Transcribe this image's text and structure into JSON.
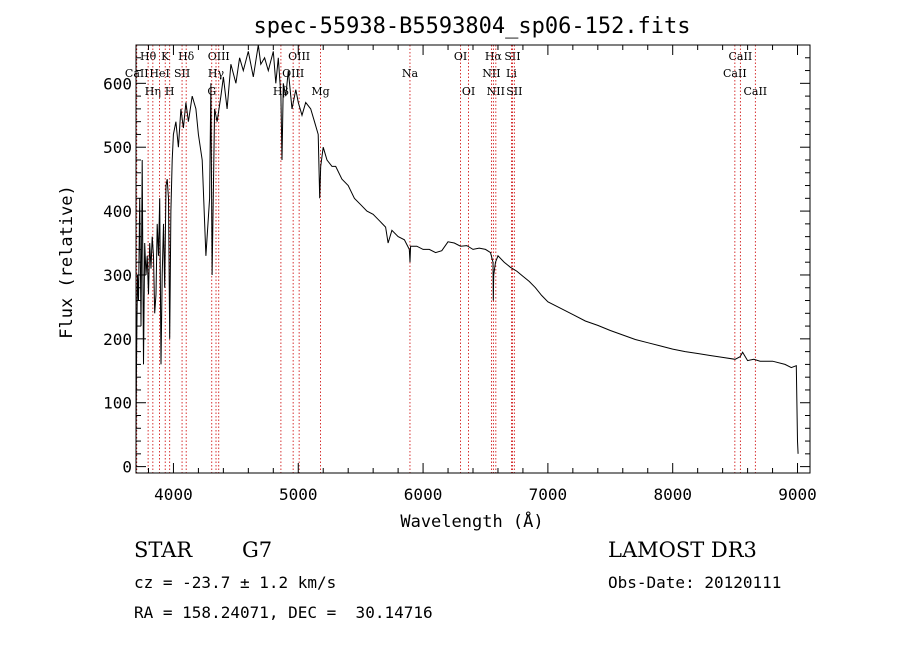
{
  "chart_data": {
    "type": "line",
    "title": "spec-55938-B5593804_sp06-152.fits",
    "xlabel": "Wavelength (Å)",
    "ylabel": "Flux (relative)",
    "xlim": [
      3700,
      9100
    ],
    "ylim": [
      -10,
      660
    ],
    "xticks": [
      4000,
      5000,
      6000,
      7000,
      8000,
      9000
    ],
    "yticks": [
      0,
      100,
      200,
      300,
      400,
      500,
      600
    ],
    "grid": false,
    "legend": "none",
    "series": [
      {
        "name": "flux",
        "x": [
          3700,
          3705,
          3712,
          3720,
          3730,
          3740,
          3750,
          3760,
          3770,
          3780,
          3790,
          3800,
          3810,
          3820,
          3830,
          3840,
          3850,
          3860,
          3870,
          3880,
          3890,
          3900,
          3910,
          3920,
          3930,
          3940,
          3950,
          3960,
          3970,
          3980,
          3990,
          4000,
          4020,
          4040,
          4060,
          4080,
          4100,
          4120,
          4150,
          4180,
          4200,
          4230,
          4260,
          4290,
          4300,
          4310,
          4330,
          4350,
          4380,
          4400,
          4430,
          4460,
          4500,
          4530,
          4560,
          4600,
          4640,
          4680,
          4700,
          4730,
          4760,
          4800,
          4820,
          4840,
          4861,
          4870,
          4880,
          4900,
          4920,
          4950,
          4980,
          5000,
          5030,
          5060,
          5100,
          5130,
          5160,
          5172,
          5180,
          5200,
          5230,
          5270,
          5300,
          5350,
          5400,
          5450,
          5500,
          5550,
          5600,
          5650,
          5700,
          5720,
          5750,
          5800,
          5850,
          5890,
          5895,
          5900,
          5950,
          6000,
          6050,
          6100,
          6150,
          6200,
          6250,
          6300,
          6350,
          6400,
          6450,
          6500,
          6540,
          6560,
          6563,
          6566,
          6580,
          6600,
          6650,
          6700,
          6750,
          6800,
          6850,
          6900,
          6950,
          7000,
          7100,
          7200,
          7300,
          7400,
          7500,
          7600,
          7700,
          7800,
          7900,
          8000,
          8100,
          8200,
          8300,
          8400,
          8500,
          8540,
          8560,
          8600,
          8650,
          8700,
          8800,
          8900,
          8950,
          8990,
          9000,
          9005
        ],
        "values": [
          40,
          180,
          300,
          260,
          420,
          220,
          480,
          160,
          350,
          300,
          330,
          270,
          350,
          310,
          360,
          330,
          240,
          270,
          380,
          330,
          420,
          160,
          300,
          380,
          280,
          440,
          450,
          420,
          200,
          400,
          480,
          520,
          540,
          500,
          560,
          530,
          570,
          540,
          580,
          560,
          520,
          480,
          330,
          420,
          600,
          300,
          560,
          540,
          580,
          610,
          560,
          630,
          600,
          640,
          620,
          650,
          610,
          660,
          630,
          640,
          620,
          650,
          600,
          640,
          580,
          480,
          600,
          580,
          620,
          560,
          590,
          570,
          550,
          570,
          560,
          540,
          520,
          420,
          470,
          500,
          480,
          470,
          470,
          450,
          440,
          420,
          410,
          400,
          395,
          385,
          375,
          350,
          370,
          360,
          355,
          340,
          320,
          345,
          345,
          340,
          340,
          335,
          338,
          352,
          350,
          345,
          346,
          340,
          342,
          340,
          335,
          320,
          260,
          300,
          320,
          330,
          320,
          312,
          306,
          298,
          290,
          280,
          268,
          258,
          248,
          238,
          228,
          221,
          213,
          206,
          199,
          194,
          189,
          184,
          180,
          177,
          174,
          171,
          168,
          172,
          179,
          166,
          168,
          165,
          165,
          160,
          155,
          158,
          40,
          20
        ]
      }
    ],
    "lines": [
      {
        "label": "Hθ",
        "x": 3797,
        "row": 1
      },
      {
        "label": "CaII",
        "x": 3706,
        "row": 2
      },
      {
        "label": "Hη",
        "x": 3835,
        "row": 3
      },
      {
        "label": "K",
        "x": 3934,
        "row": 1
      },
      {
        "label": "HeI",
        "x": 3889,
        "row": 2
      },
      {
        "label": "H",
        "x": 3970,
        "row": 3
      },
      {
        "label": "Hδ",
        "x": 4102,
        "row": 1
      },
      {
        "label": "SII",
        "x": 4069,
        "row": 2
      },
      {
        "label": "OIII",
        "x": 4363,
        "row": 1
      },
      {
        "label": "Hγ",
        "x": 4341,
        "row": 2
      },
      {
        "label": "G",
        "x": 4307,
        "row": 3
      },
      {
        "label": "OIII",
        "x": 5007,
        "row": 1
      },
      {
        "label": "OIII",
        "x": 4959,
        "row": 2
      },
      {
        "label": "Hβ",
        "x": 4861,
        "row": 3
      },
      {
        "label": "Mg",
        "x": 5178,
        "row": 3
      },
      {
        "label": "Na",
        "x": 5895,
        "row": 2
      },
      {
        "label": "OI",
        "x": 6300,
        "row": 1
      },
      {
        "label": "OI",
        "x": 6364,
        "row": 3
      },
      {
        "label": "Hα",
        "x": 6563,
        "row": 1
      },
      {
        "label": "SII",
        "x": 6716,
        "row": 1
      },
      {
        "label": "NII",
        "x": 6548,
        "row": 2
      },
      {
        "label": "Li",
        "x": 6708,
        "row": 2
      },
      {
        "label": "NII",
        "x": 6583,
        "row": 3
      },
      {
        "label": "SII",
        "x": 6731,
        "row": 3
      },
      {
        "label": "CaII",
        "x": 8542,
        "row": 1
      },
      {
        "label": "CaII",
        "x": 8498,
        "row": 2
      },
      {
        "label": "CaII",
        "x": 8662,
        "row": 3
      }
    ]
  },
  "info": {
    "object_class": "STAR",
    "subclass": "G7",
    "survey": "LAMOST DR3",
    "velocity": "cz = -23.7 ± 1.2 km/s",
    "obs_date": "Obs-Date: 20120111",
    "coords": "RA = 158.24071, DEC =  30.14716"
  },
  "colors": {
    "axis": "#000000",
    "spectrum": "#000000",
    "line_marker": "#cc0000"
  }
}
